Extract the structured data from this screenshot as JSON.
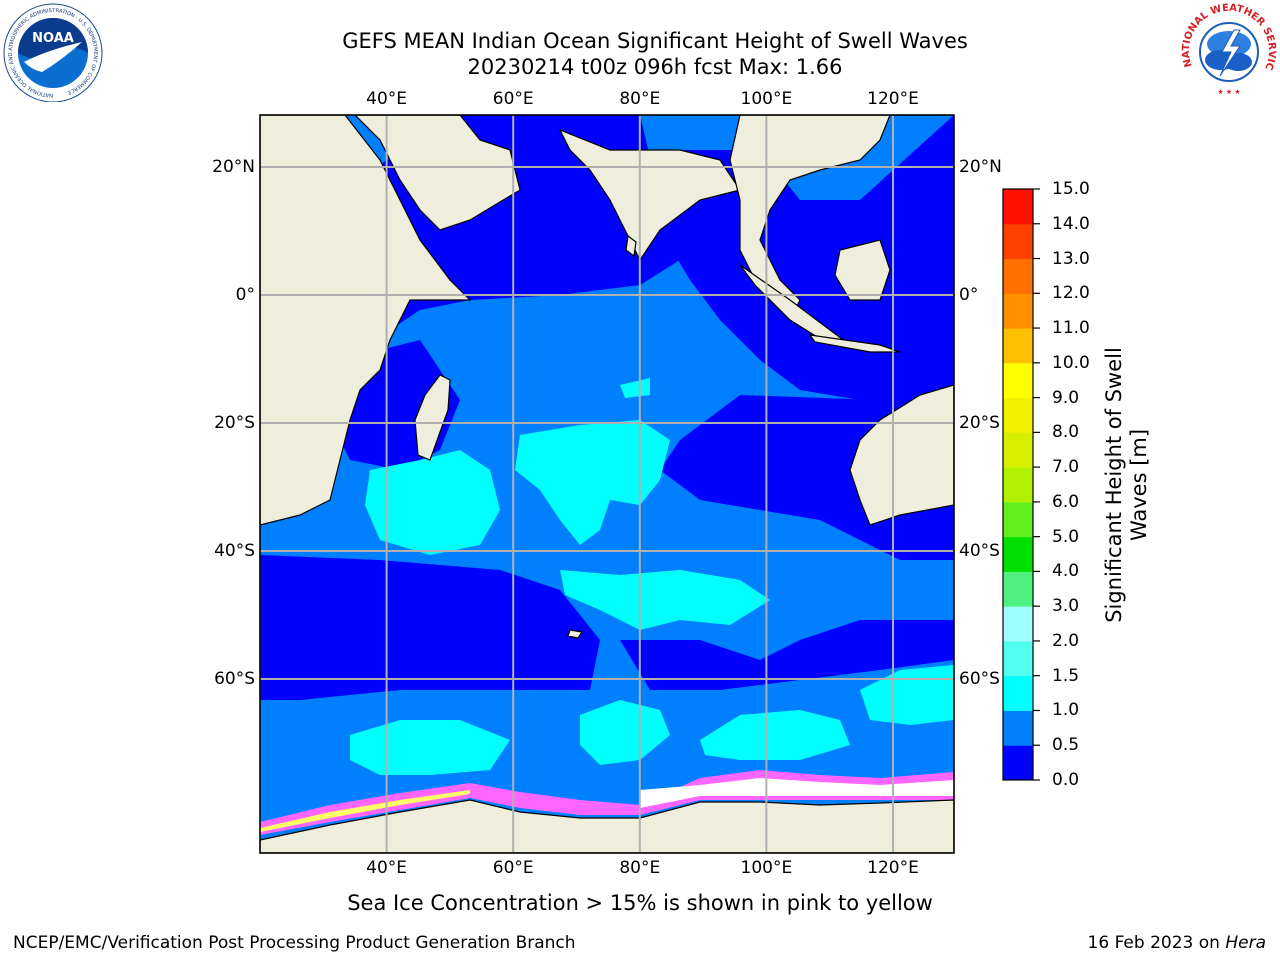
{
  "header": {
    "title_line1": "GEFS MEAN Indian Ocean Significant Height of Swell Waves",
    "title_line2": "20230214 t00z 096h fcst   Max: 1.66"
  },
  "map": {
    "lon_ticks_top": [
      "40°E",
      "60°E",
      "80°E",
      "100°E",
      "120°E"
    ],
    "lon_ticks_bottom": [
      "40°E",
      "60°E",
      "80°E",
      "100°E",
      "120°E"
    ],
    "lat_ticks_left": [
      "20°N",
      "0°",
      "20°S",
      "40°S",
      "60°S"
    ],
    "lat_ticks_right": [
      "20°N",
      "0°",
      "20°S",
      "40°S",
      "60°S"
    ],
    "lon_values": [
      40,
      60,
      80,
      100,
      120
    ],
    "lat_values": [
      20,
      0,
      -20,
      -40,
      -60
    ],
    "colors": {
      "land": "#efeedd",
      "ocean_low": "#0000ff",
      "ocean_mid": "#0080ff",
      "ocean_high": "#00ffff",
      "ice_pink": "#ff66ff",
      "ice_yellow": "#ffff66"
    }
  },
  "colorbar": {
    "title_line1": "Significant Height of Swell",
    "title_line2": "Waves [m]",
    "tick_labels": [
      "0.0",
      "0.5",
      "1.0",
      "1.5",
      "2.0",
      "3.0",
      "4.0",
      "5.0",
      "6.0",
      "7.0",
      "8.0",
      "9.0",
      "10.0",
      "11.0",
      "12.0",
      "13.0",
      "14.0",
      "15.0"
    ],
    "colors": [
      "#0000ff",
      "#0080ff",
      "#00ffff",
      "#50ffef",
      "#a0ffff",
      "#50f080",
      "#00e000",
      "#60f020",
      "#b0f000",
      "#d8f000",
      "#f0f000",
      "#ffff00",
      "#ffc000",
      "#ff9000",
      "#ff7000",
      "#ff4000",
      "#ff1000"
    ]
  },
  "note": "Sea Ice Concentration > 15% is shown in pink to yellow",
  "footer": {
    "left": "NCEP/EMC/Verification Post Processing Product Generation Branch",
    "right_prefix": "16 Feb 2023 on ",
    "right_italic": "Hera"
  },
  "logos": {
    "noaa_text": "NOAA",
    "noaa_ring": "NATIONAL OCEANIC AND ATMOSPHERIC ADMINISTRATION · U.S. DEPARTMENT OF COMMERCE",
    "nws_ring": "NATIONAL WEATHER SERVICE"
  }
}
